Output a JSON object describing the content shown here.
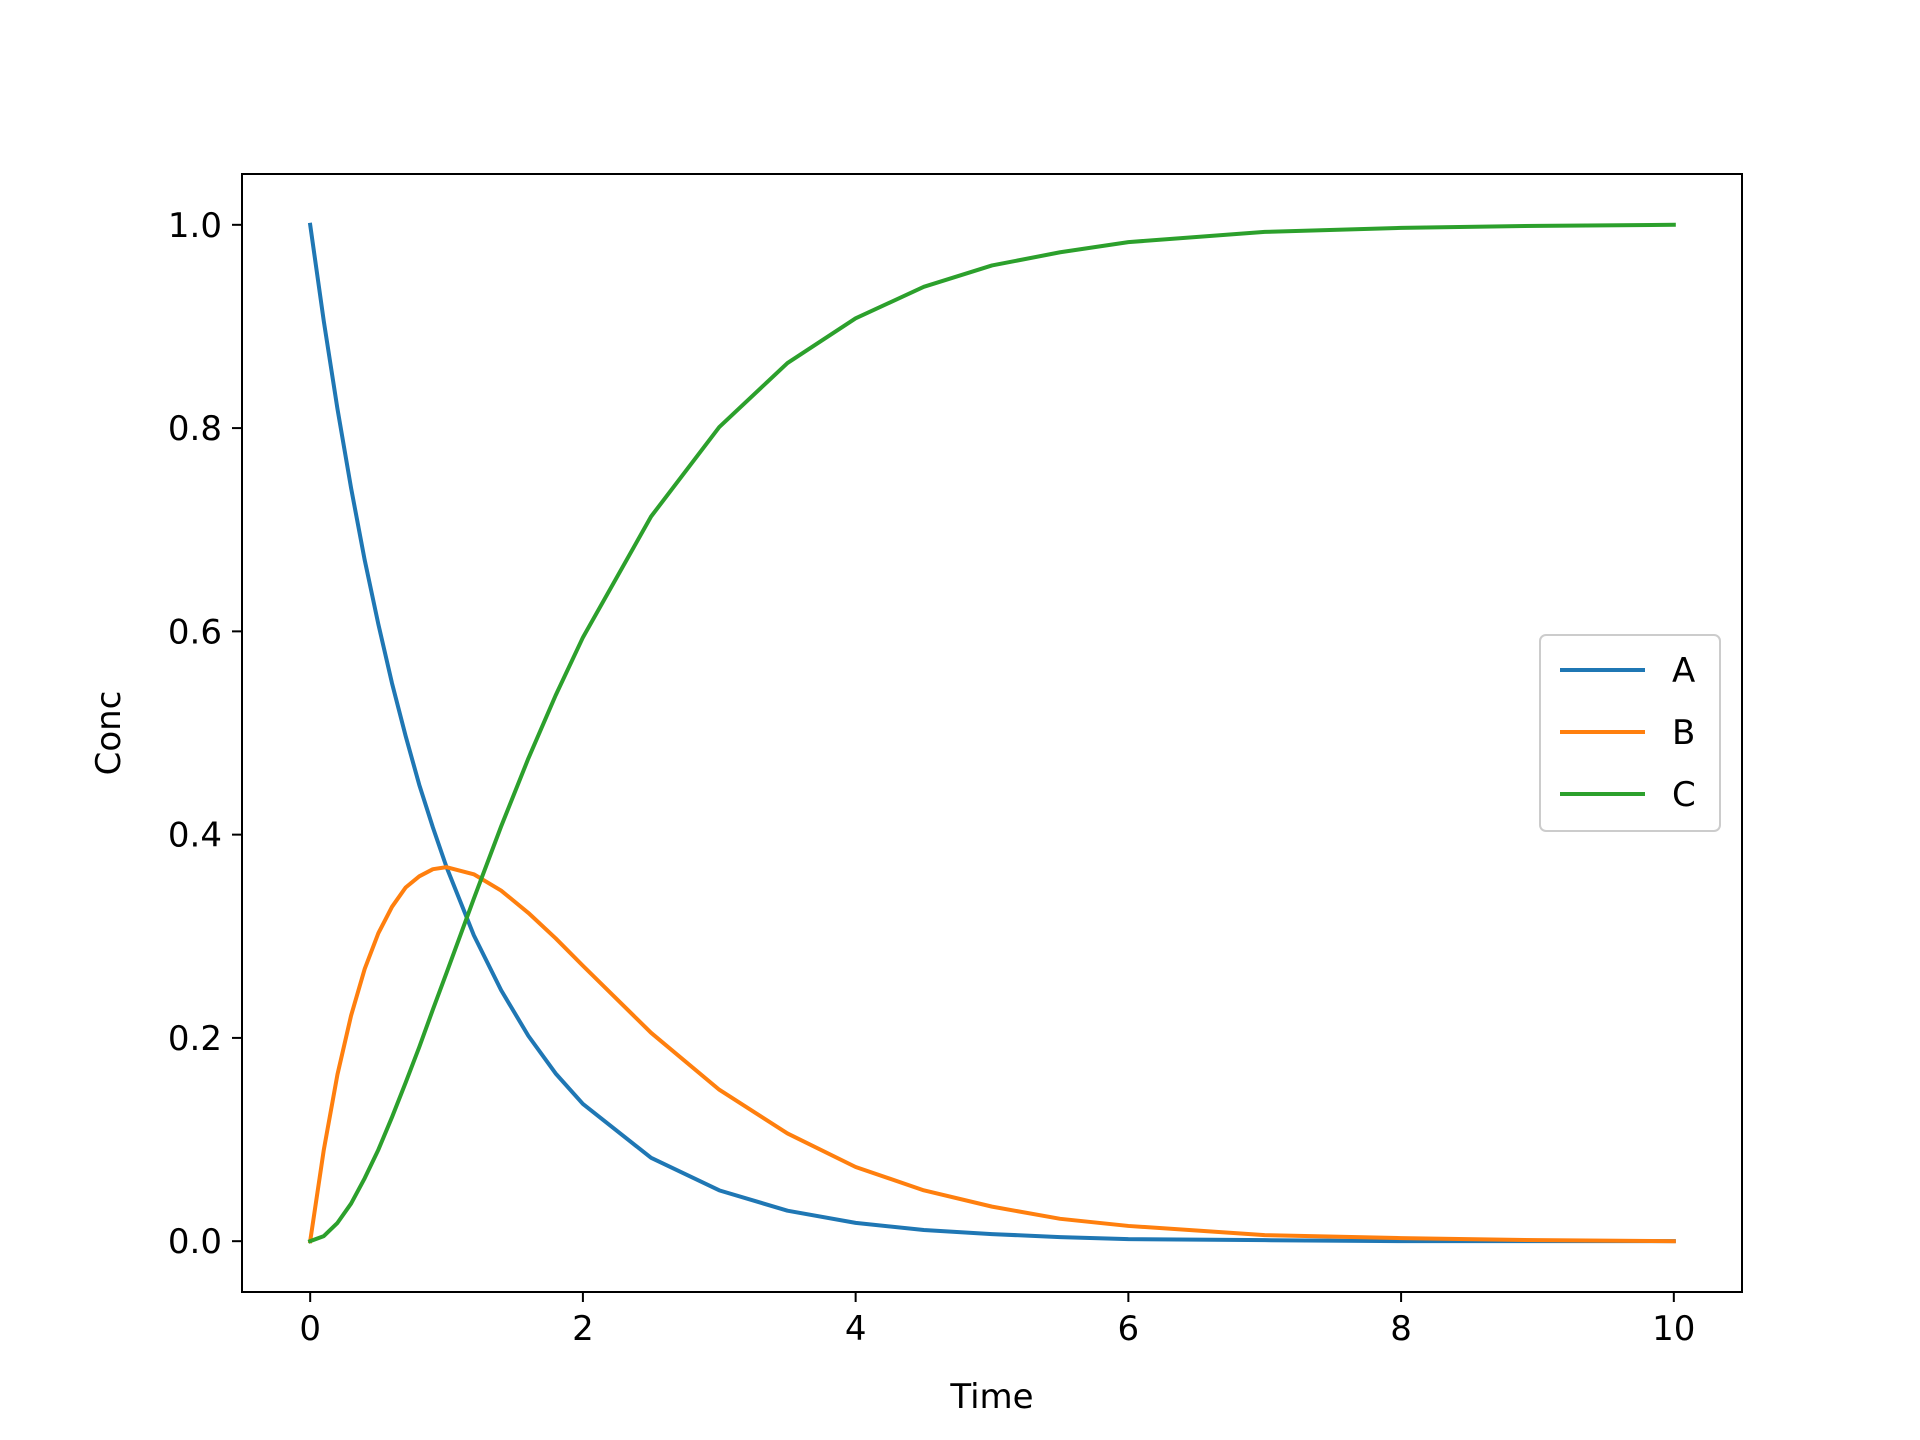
{
  "chart_data": {
    "type": "line",
    "title": "",
    "xlabel": "Time",
    "ylabel": "Conc",
    "xlim": [
      -0.5,
      10.5
    ],
    "ylim": [
      -0.05,
      1.05
    ],
    "xticks": [
      0,
      2,
      4,
      6,
      8,
      10
    ],
    "xtick_labels": [
      "0",
      "2",
      "4",
      "6",
      "8",
      "10"
    ],
    "yticks": [
      0.0,
      0.2,
      0.4,
      0.6,
      0.8,
      1.0
    ],
    "ytick_labels": [
      "0.0",
      "0.2",
      "0.4",
      "0.6",
      "0.8",
      "1.0"
    ],
    "grid": false,
    "legend_position": "center-right",
    "x": [
      0,
      0.1,
      0.2,
      0.3,
      0.4,
      0.5,
      0.6,
      0.7,
      0.8,
      0.9,
      1.0,
      1.2,
      1.4,
      1.6,
      1.8,
      2.0,
      2.5,
      3.0,
      3.5,
      4.0,
      4.5,
      5.0,
      5.5,
      6.0,
      7.0,
      8.0,
      9.0,
      10.0
    ],
    "series": [
      {
        "name": "A",
        "color": "#1f77b4",
        "values": [
          1.0,
          0.905,
          0.819,
          0.741,
          0.67,
          0.607,
          0.549,
          0.497,
          0.449,
          0.407,
          0.368,
          0.301,
          0.247,
          0.202,
          0.165,
          0.135,
          0.082,
          0.05,
          0.03,
          0.018,
          0.011,
          0.007,
          0.004,
          0.002,
          0.001,
          0.0,
          0.0,
          0.0
        ]
      },
      {
        "name": "B",
        "color": "#ff7f0e",
        "values": [
          0.0,
          0.09,
          0.164,
          0.222,
          0.268,
          0.303,
          0.329,
          0.348,
          0.359,
          0.366,
          0.368,
          0.361,
          0.345,
          0.323,
          0.298,
          0.271,
          0.205,
          0.149,
          0.106,
          0.073,
          0.05,
          0.034,
          0.022,
          0.015,
          0.006,
          0.003,
          0.001,
          0.0
        ]
      },
      {
        "name": "C",
        "color": "#2ca02c",
        "values": [
          0.0,
          0.005,
          0.018,
          0.037,
          0.062,
          0.09,
          0.122,
          0.156,
          0.191,
          0.228,
          0.264,
          0.337,
          0.408,
          0.475,
          0.537,
          0.594,
          0.713,
          0.801,
          0.864,
          0.908,
          0.939,
          0.96,
          0.973,
          0.983,
          0.993,
          0.997,
          0.999,
          1.0
        ]
      }
    ]
  }
}
